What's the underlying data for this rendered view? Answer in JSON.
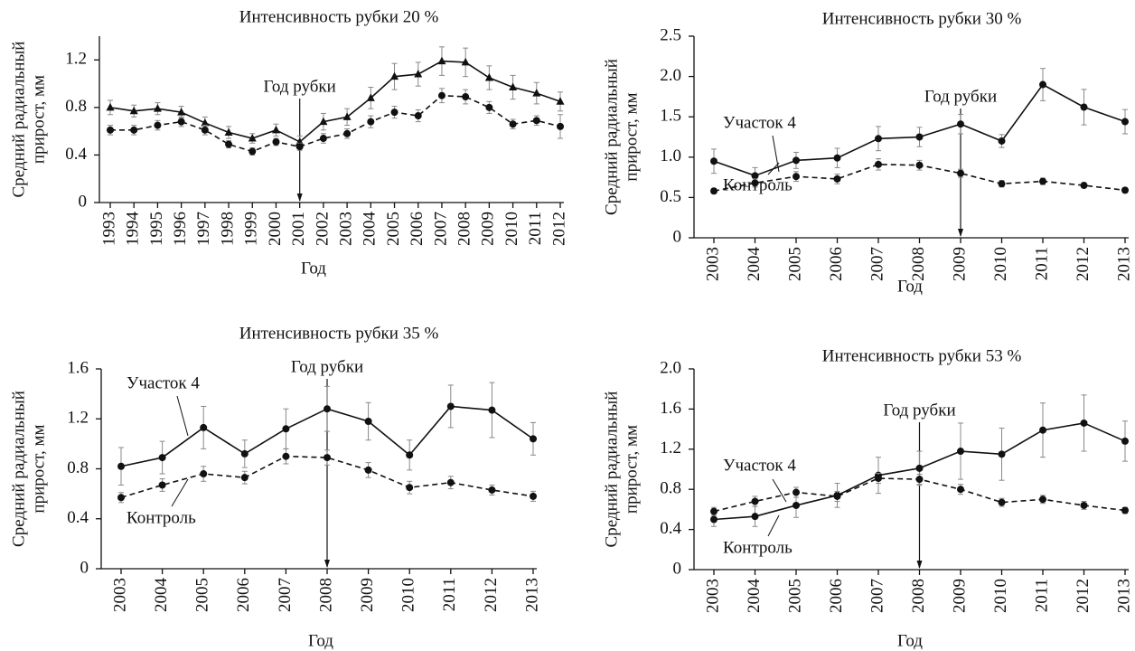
{
  "chart_data": [
    {
      "type": "line",
      "title": "Интенсивность рубки 20 %",
      "ylabel": [
        "Средний радиальный",
        "прирост, мм"
      ],
      "xlabel": "Год",
      "categories": [
        "1993",
        "1994",
        "1995",
        "1996",
        "1997",
        "1998",
        "1999",
        "2000",
        "2001",
        "2002",
        "2003",
        "2004",
        "2005",
        "2006",
        "2007",
        "2008",
        "2009",
        "2010",
        "2011",
        "2012"
      ],
      "ylim": [
        0,
        1.4
      ],
      "yticks": [
        0,
        0.4,
        0.8,
        1.2
      ],
      "annotation": {
        "text": "Год рубки",
        "x": "2001"
      },
      "series": [
        {
          "color": "#111111",
          "marker": "triangle",
          "dash": false,
          "values": [
            0.8,
            0.77,
            0.79,
            0.76,
            0.67,
            0.59,
            0.54,
            0.61,
            0.51,
            0.68,
            0.72,
            0.88,
            1.06,
            1.08,
            1.19,
            1.18,
            1.05,
            0.97,
            0.92,
            0.85
          ],
          "errors": [
            0.06,
            0.05,
            0.05,
            0.05,
            0.05,
            0.05,
            0.04,
            0.05,
            0.05,
            0.07,
            0.07,
            0.09,
            0.11,
            0.1,
            0.12,
            0.12,
            0.1,
            0.1,
            0.09,
            0.08
          ]
        },
        {
          "color": "#111111",
          "marker": "circle",
          "dash": true,
          "values": [
            0.61,
            0.61,
            0.65,
            0.68,
            0.61,
            0.49,
            0.43,
            0.51,
            0.47,
            0.54,
            0.58,
            0.68,
            0.76,
            0.73,
            0.9,
            0.89,
            0.8,
            0.66,
            0.69,
            0.64
          ],
          "errors": [
            0.04,
            0.04,
            0.04,
            0.04,
            0.04,
            0.03,
            0.03,
            0.03,
            0.03,
            0.04,
            0.04,
            0.05,
            0.05,
            0.05,
            0.06,
            0.06,
            0.05,
            0.04,
            0.04,
            0.1
          ]
        }
      ]
    },
    {
      "type": "line",
      "title": "Интенсивность рубки 30 %",
      "ylabel": [
        "Средний радиальный",
        "прирост, мм"
      ],
      "xlabel": "Год",
      "categories": [
        "2003",
        "2004",
        "2005",
        "2006",
        "2007",
        "2008",
        "2009",
        "2010",
        "2011",
        "2012",
        "2013"
      ],
      "ylim": [
        0,
        2.5
      ],
      "yticks": [
        0,
        0.5,
        {
          "value": 1,
          "label": "1.0"
        },
        1.5,
        {
          "value": 2,
          "label": "2.0"
        },
        2.5
      ],
      "annotation": {
        "text": "Год рубки",
        "x": "2009"
      },
      "series": [
        {
          "name": "Участок 4",
          "color": "#111111",
          "marker": "circle",
          "dash": false,
          "values": [
            0.95,
            0.77,
            0.96,
            0.99,
            1.23,
            1.25,
            1.41,
            1.2,
            1.9,
            1.62,
            1.44
          ],
          "errors": [
            0.15,
            0.1,
            0.1,
            0.12,
            0.15,
            0.12,
            0.12,
            0.08,
            0.2,
            0.22,
            0.15
          ]
        },
        {
          "name": "Контроль",
          "color": "#111111",
          "marker": "circle",
          "dash": true,
          "values": [
            0.58,
            0.68,
            0.76,
            0.73,
            0.91,
            0.9,
            0.8,
            0.67,
            0.7,
            0.65,
            0.59
          ],
          "errors": [
            0.03,
            0.05,
            0.06,
            0.06,
            0.07,
            0.06,
            0.05,
            0.04,
            0.04,
            0.03,
            0.03
          ]
        }
      ]
    },
    {
      "type": "line",
      "title": "Интенсивность рубки 35 %",
      "ylabel": [
        "Средний радиальный",
        "прирост, мм"
      ],
      "xlabel": "Год",
      "categories": [
        "2003",
        "2004",
        "2005",
        "2006",
        "2007",
        "2008",
        "2009",
        "2010",
        "2011",
        "2012",
        "2013"
      ],
      "ylim": [
        0,
        1.6
      ],
      "yticks": [
        0,
        0.4,
        0.8,
        1.2,
        1.6
      ],
      "annotation": {
        "text": "Год рубки",
        "x": "2008"
      },
      "series": [
        {
          "name": "Участок 4",
          "color": "#111111",
          "marker": "circle",
          "dash": false,
          "values": [
            0.82,
            0.89,
            1.13,
            0.92,
            1.12,
            1.28,
            1.18,
            0.91,
            1.3,
            1.27,
            1.04
          ],
          "errors": [
            0.15,
            0.13,
            0.17,
            0.11,
            0.16,
            0.18,
            0.15,
            0.12,
            0.17,
            0.22,
            0.13
          ]
        },
        {
          "name": "Контроль",
          "color": "#111111",
          "marker": "circle",
          "dash": true,
          "values": [
            0.57,
            0.67,
            0.76,
            0.73,
            0.9,
            0.89,
            0.79,
            0.65,
            0.69,
            0.63,
            0.58
          ],
          "errors": [
            0.04,
            0.05,
            0.06,
            0.05,
            0.06,
            0.06,
            0.06,
            0.05,
            0.05,
            0.04,
            0.04
          ]
        }
      ]
    },
    {
      "type": "line",
      "title": "Интенсивность рубки 53 %",
      "ylabel": [
        "Средний радиальный",
        "прирост, мм"
      ],
      "xlabel": "Год",
      "categories": [
        "2003",
        "2004",
        "2005",
        "2006",
        "2007",
        "2008",
        "2009",
        "2010",
        "2011",
        "2012",
        "2013"
      ],
      "ylim": [
        0,
        2
      ],
      "yticks": [
        0,
        0.4,
        0.8,
        1.2,
        1.6,
        {
          "value": 2,
          "label": "2.0"
        }
      ],
      "annotation": {
        "text": "Год рубки",
        "x": "2008"
      },
      "series": [
        {
          "name": "Участок 4",
          "color": "#111111",
          "marker": "circle",
          "dash": false,
          "values": [
            0.5,
            0.53,
            0.64,
            0.74,
            0.94,
            1.01,
            1.18,
            1.15,
            1.39,
            1.46,
            1.28
          ],
          "errors": [
            0.07,
            0.1,
            0.12,
            0.12,
            0.18,
            0.17,
            0.28,
            0.26,
            0.27,
            0.28,
            0.2
          ]
        },
        {
          "name": "Контроль",
          "color": "#111111",
          "marker": "circle",
          "dash": true,
          "values": [
            0.58,
            0.68,
            0.77,
            0.73,
            0.91,
            0.9,
            0.8,
            0.67,
            0.7,
            0.64,
            0.59
          ],
          "errors": [
            0.04,
            0.05,
            0.05,
            0.05,
            0.05,
            0.05,
            0.05,
            0.04,
            0.04,
            0.04,
            0.03
          ]
        }
      ]
    }
  ]
}
